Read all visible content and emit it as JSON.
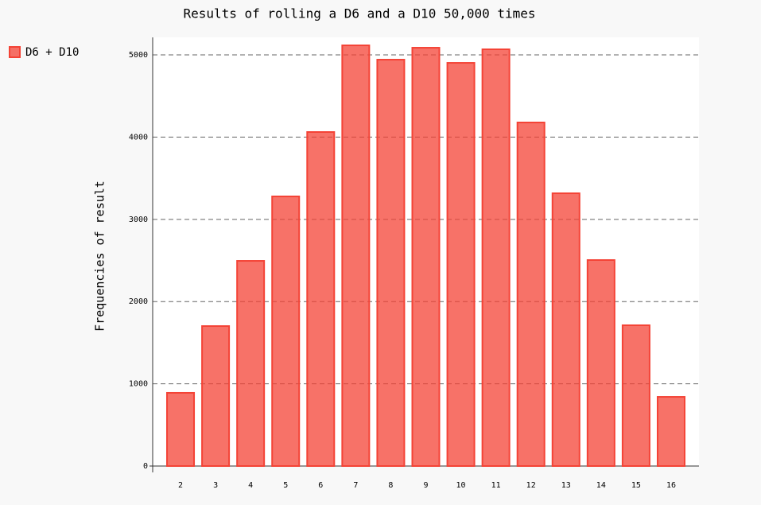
{
  "chart_data": {
    "type": "bar",
    "title": "Results of rolling a D6 and a D10 50,000 times",
    "y_label": "Frequencies of result",
    "categories": [
      "2",
      "3",
      "4",
      "5",
      "6",
      "7",
      "8",
      "9",
      "10",
      "11",
      "12",
      "13",
      "14",
      "15",
      "16"
    ],
    "series": [
      {
        "name": "D6 + D10",
        "color": "#f44336",
        "values": [
          890,
          1702,
          2495,
          3279,
          4062,
          5116,
          4942,
          5087,
          4903,
          5068,
          4178,
          3317,
          2505,
          1712,
          841
        ]
      }
    ],
    "ylim": [
      0,
      5213
    ],
    "yticks": [
      0,
      1000,
      2000,
      3000,
      4000,
      5000
    ],
    "grid": true,
    "legend": "top-left"
  }
}
